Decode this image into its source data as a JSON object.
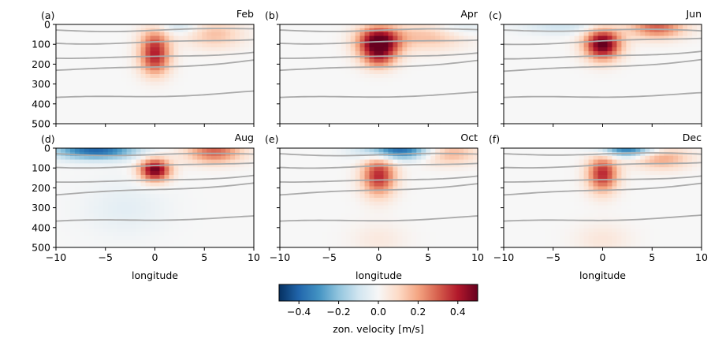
{
  "chart_data": {
    "type": "heatmap",
    "xlabel": "longitude",
    "ylabel": "",
    "xlim": [
      -10,
      10
    ],
    "ylim": [
      500,
      0
    ],
    "xticks": [
      -10,
      -5,
      0,
      5,
      10
    ],
    "yticks": [
      0,
      100,
      200,
      300,
      400,
      500
    ],
    "colormap": "RdBu_r",
    "colorbar": {
      "label": "zon. velocity [m/s]",
      "range": [
        -0.5,
        0.5
      ],
      "ticks": [
        -0.4,
        -0.2,
        0.0,
        0.2,
        0.4
      ],
      "tick_labels": [
        "−0.4",
        "−0.2",
        "0.0",
        "0.2",
        "0.4"
      ]
    },
    "contour_color": "#aaaaaa",
    "panels": [
      {
        "letter": "(a)",
        "month": "Feb",
        "contours": [
          [
            28,
            34,
            22
          ],
          [
            90,
            104,
            72
          ],
          [
            165,
            182,
            135
          ],
          [
            230,
            226,
            178
          ],
          [
            372,
            362,
            340
          ]
        ],
        "features": [
          {
            "x": 0,
            "depth": 100,
            "rx": 1.1,
            "ry": 60,
            "amp": 0.28
          },
          {
            "x": 0,
            "depth": 190,
            "rx": 1.1,
            "ry": 55,
            "amp": 0.26
          },
          {
            "x": 6,
            "depth": 50,
            "rx": 2.0,
            "ry": 50,
            "amp": 0.15
          },
          {
            "x": 2.5,
            "depth": 15,
            "rx": 1.5,
            "ry": 25,
            "amp": -0.1
          }
        ]
      },
      {
        "letter": "(b)",
        "month": "Apr",
        "contours": [
          [
            28,
            32,
            26
          ],
          [
            90,
            102,
            74
          ],
          [
            165,
            180,
            138
          ],
          [
            230,
            225,
            180
          ],
          [
            372,
            364,
            345
          ]
        ],
        "features": [
          {
            "x": 0,
            "depth": 90,
            "rx": 1.5,
            "ry": 55,
            "amp": 0.55
          },
          {
            "x": 0,
            "depth": 175,
            "rx": 1.2,
            "ry": 40,
            "amp": 0.2
          },
          {
            "x": 5,
            "depth": 60,
            "rx": 2.5,
            "ry": 50,
            "amp": 0.15
          },
          {
            "x": 8,
            "depth": 20,
            "rx": 2.0,
            "ry": 25,
            "amp": -0.08
          }
        ]
      },
      {
        "letter": "(c)",
        "month": "Jun",
        "contours": [
          [
            28,
            28,
            32
          ],
          [
            95,
            96,
            65
          ],
          [
            168,
            178,
            130
          ],
          [
            235,
            222,
            176
          ],
          [
            372,
            364,
            348
          ]
        ],
        "features": [
          {
            "x": 0,
            "depth": 100,
            "rx": 1.3,
            "ry": 55,
            "amp": 0.52
          },
          {
            "x": 5.5,
            "depth": 15,
            "rx": 2.0,
            "ry": 40,
            "amp": 0.3
          },
          {
            "x": -4,
            "depth": 15,
            "rx": 3.0,
            "ry": 25,
            "amp": -0.1
          }
        ]
      },
      {
        "letter": "(d)",
        "month": "Aug",
        "contours": [
          [
            28,
            36,
            30
          ],
          [
            92,
            104,
            70
          ],
          [
            165,
            184,
            132
          ],
          [
            235,
            214,
            175
          ],
          [
            372,
            358,
            346
          ]
        ],
        "features": [
          {
            "x": 0,
            "depth": 110,
            "rx": 1.1,
            "ry": 40,
            "amp": 0.5
          },
          {
            "x": -6,
            "depth": 15,
            "rx": 3.0,
            "ry": 30,
            "amp": -0.4
          },
          {
            "x": 6,
            "depth": 20,
            "rx": 2.0,
            "ry": 40,
            "amp": 0.3
          },
          {
            "x": -3,
            "depth": 300,
            "rx": 3.0,
            "ry": 100,
            "amp": -0.05
          }
        ]
      },
      {
        "letter": "(e)",
        "month": "Oct",
        "contours": [
          [
            28,
            38,
            30
          ],
          [
            92,
            106,
            72
          ],
          [
            165,
            182,
            135
          ],
          [
            235,
            218,
            178
          ],
          [
            372,
            364,
            346
          ]
        ],
        "features": [
          {
            "x": 0,
            "depth": 140,
            "rx": 1.2,
            "ry": 70,
            "amp": 0.38
          },
          {
            "x": 2,
            "depth": 15,
            "rx": 2.5,
            "ry": 30,
            "amp": -0.4
          },
          {
            "x": 7,
            "depth": 25,
            "rx": 2.0,
            "ry": 40,
            "amp": 0.2
          },
          {
            "x": 0,
            "depth": 460,
            "rx": 2.0,
            "ry": 60,
            "amp": 0.05
          }
        ]
      },
      {
        "letter": "(f)",
        "month": "Dec",
        "contours": [
          [
            28,
            30,
            30
          ],
          [
            92,
            100,
            68
          ],
          [
            165,
            178,
            135
          ],
          [
            235,
            220,
            176
          ],
          [
            372,
            362,
            342
          ]
        ],
        "features": [
          {
            "x": 0,
            "depth": 130,
            "rx": 1.1,
            "ry": 65,
            "amp": 0.38
          },
          {
            "x": 2.5,
            "depth": 10,
            "rx": 2.0,
            "ry": 25,
            "amp": -0.35
          },
          {
            "x": 6,
            "depth": 50,
            "rx": 2.0,
            "ry": 40,
            "amp": 0.2
          },
          {
            "x": 0,
            "depth": 460,
            "rx": 2.0,
            "ry": 60,
            "amp": 0.06
          }
        ]
      }
    ]
  }
}
